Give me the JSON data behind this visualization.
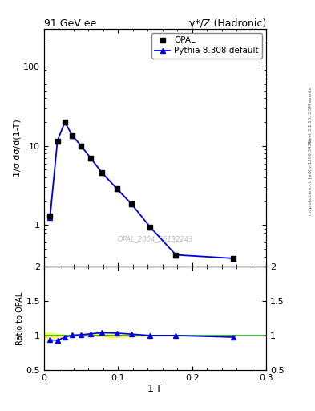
{
  "title_left": "91 GeV ee",
  "title_right": "γ*/Z (Hadronic)",
  "ylabel_main": "1/σ dσ/d(1-T)",
  "ylabel_ratio": "Ratio to OPAL",
  "xlabel": "1-T",
  "watermark": "OPAL_2004_S6132243",
  "right_label_top": "Rivet 3.1.10, 3.5M events",
  "right_label_bot": "mcplots.cern.ch [arXiv:1306.3436]",
  "data_x": [
    0.008,
    0.018,
    0.028,
    0.038,
    0.05,
    0.063,
    0.078,
    0.098,
    0.118,
    0.143,
    0.178,
    0.255
  ],
  "data_y": [
    1.3,
    11.5,
    20.0,
    13.5,
    10.0,
    7.0,
    4.6,
    2.9,
    1.85,
    0.95,
    0.42,
    0.38
  ],
  "mc_x": [
    0.008,
    0.018,
    0.028,
    0.038,
    0.05,
    0.063,
    0.078,
    0.098,
    0.118,
    0.143,
    0.178,
    0.255
  ],
  "mc_y": [
    1.25,
    11.5,
    20.0,
    13.5,
    10.0,
    7.0,
    4.6,
    2.9,
    1.85,
    0.95,
    0.42,
    0.38
  ],
  "ratio_x": [
    0.008,
    0.018,
    0.028,
    0.038,
    0.05,
    0.063,
    0.078,
    0.098,
    0.118,
    0.143,
    0.178,
    0.255
  ],
  "ratio_y": [
    0.935,
    0.93,
    0.975,
    1.005,
    1.01,
    1.025,
    1.04,
    1.035,
    1.02,
    1.0,
    1.0,
    0.975
  ],
  "band_x": [
    0.0,
    0.005,
    0.013,
    0.023,
    0.033,
    0.043,
    0.055,
    0.07,
    0.09,
    0.11,
    0.13,
    0.16,
    0.21,
    0.3
  ],
  "band_lo": [
    0.95,
    0.95,
    0.96,
    0.975,
    0.985,
    0.99,
    0.995,
    0.99,
    0.96,
    0.975,
    0.985,
    0.99,
    0.99,
    0.995
  ],
  "band_hi": [
    1.05,
    1.05,
    1.04,
    1.025,
    1.015,
    1.01,
    1.005,
    1.035,
    1.04,
    1.025,
    1.015,
    1.01,
    1.01,
    1.005
  ],
  "green_lo": 0.995,
  "green_hi": 1.005,
  "xlim": [
    0.0,
    0.3
  ],
  "ylim_main": [
    0.3,
    300
  ],
  "ylim_ratio": [
    0.5,
    2.0
  ],
  "yticks_main": [
    1,
    10,
    100
  ],
  "yticks_ratio": [
    0.5,
    1.0,
    1.5,
    2.0
  ],
  "xticks": [
    0.0,
    0.1,
    0.2,
    0.3
  ],
  "data_color": "#000000",
  "mc_color": "#0000dd",
  "band_yellow": "#ffff00",
  "band_green": "#00cc00",
  "bg_color": "#ffffff"
}
